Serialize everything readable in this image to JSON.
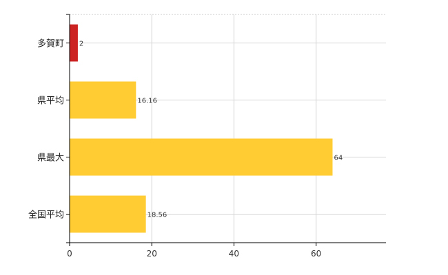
{
  "chart_data": {
    "type": "bar",
    "orientation": "horizontal",
    "categories": [
      "多賀町",
      "県平均",
      "県最大",
      "全国平均"
    ],
    "values": [
      2,
      16.16,
      64,
      18.56
    ],
    "value_labels": [
      "2",
      "16.16",
      "64",
      "18.56"
    ],
    "colors": [
      "#cc2222",
      "#ffcc33",
      "#ffcc33",
      "#ffcc33"
    ],
    "xlim": [
      0,
      77
    ],
    "xticks": [
      0,
      20,
      40,
      60
    ],
    "xtick_labels": [
      "0",
      "20",
      "40",
      "60"
    ],
    "grid": true,
    "title": "",
    "xlabel": "",
    "ylabel": ""
  }
}
